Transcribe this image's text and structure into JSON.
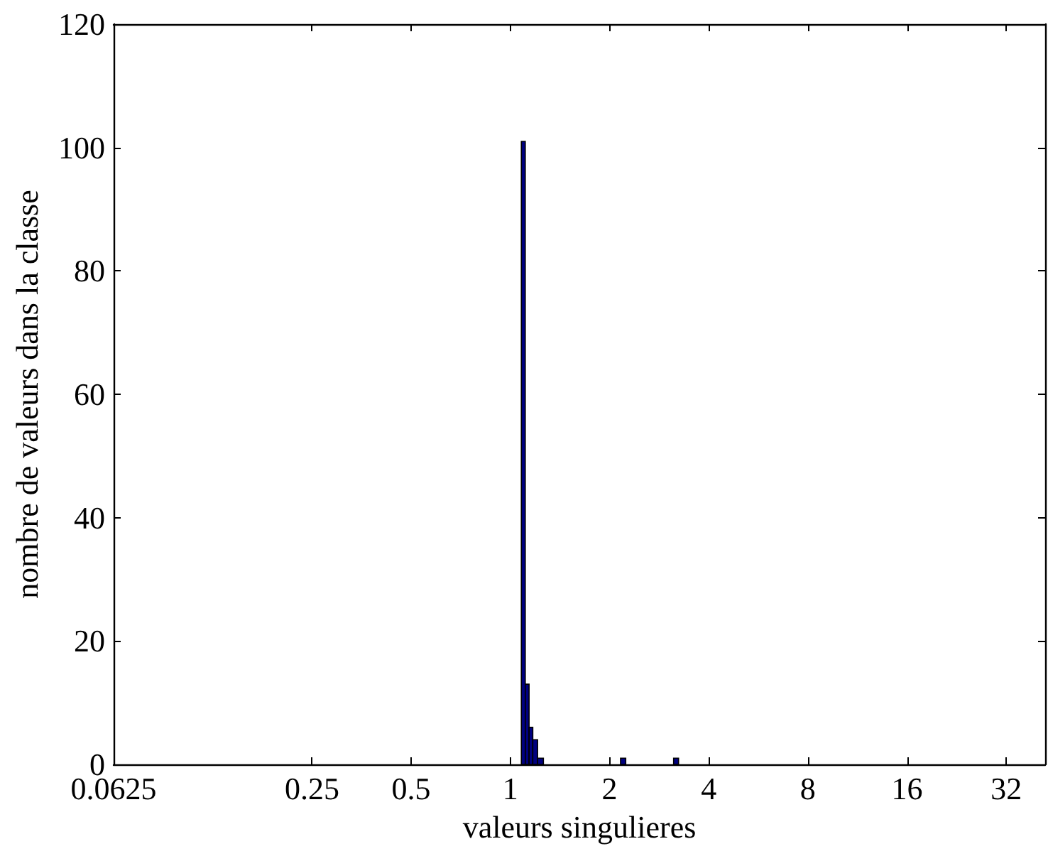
{
  "chart_data": {
    "type": "histogram",
    "xlabel": "valeurs singulieres",
    "ylabel": "nombre de valeurs dans la classe",
    "bins": [
      1.08,
      1.11,
      1.14,
      1.17,
      1.21,
      1.26,
      2.16,
      2.24,
      3.13,
      3.24
    ],
    "values": [
      101,
      13,
      6,
      4,
      1,
      0,
      1,
      0,
      1
    ],
    "color": "#000080",
    "log": "x",
    "xlim": [
      0.0625,
      42
    ],
    "xticks": [
      0.0625,
      0.25,
      0.5,
      1,
      2,
      4,
      8,
      16,
      32
    ],
    "ylim": [
      0,
      120
    ],
    "yticks": [
      0,
      20,
      40,
      60,
      80,
      100,
      120
    ]
  }
}
